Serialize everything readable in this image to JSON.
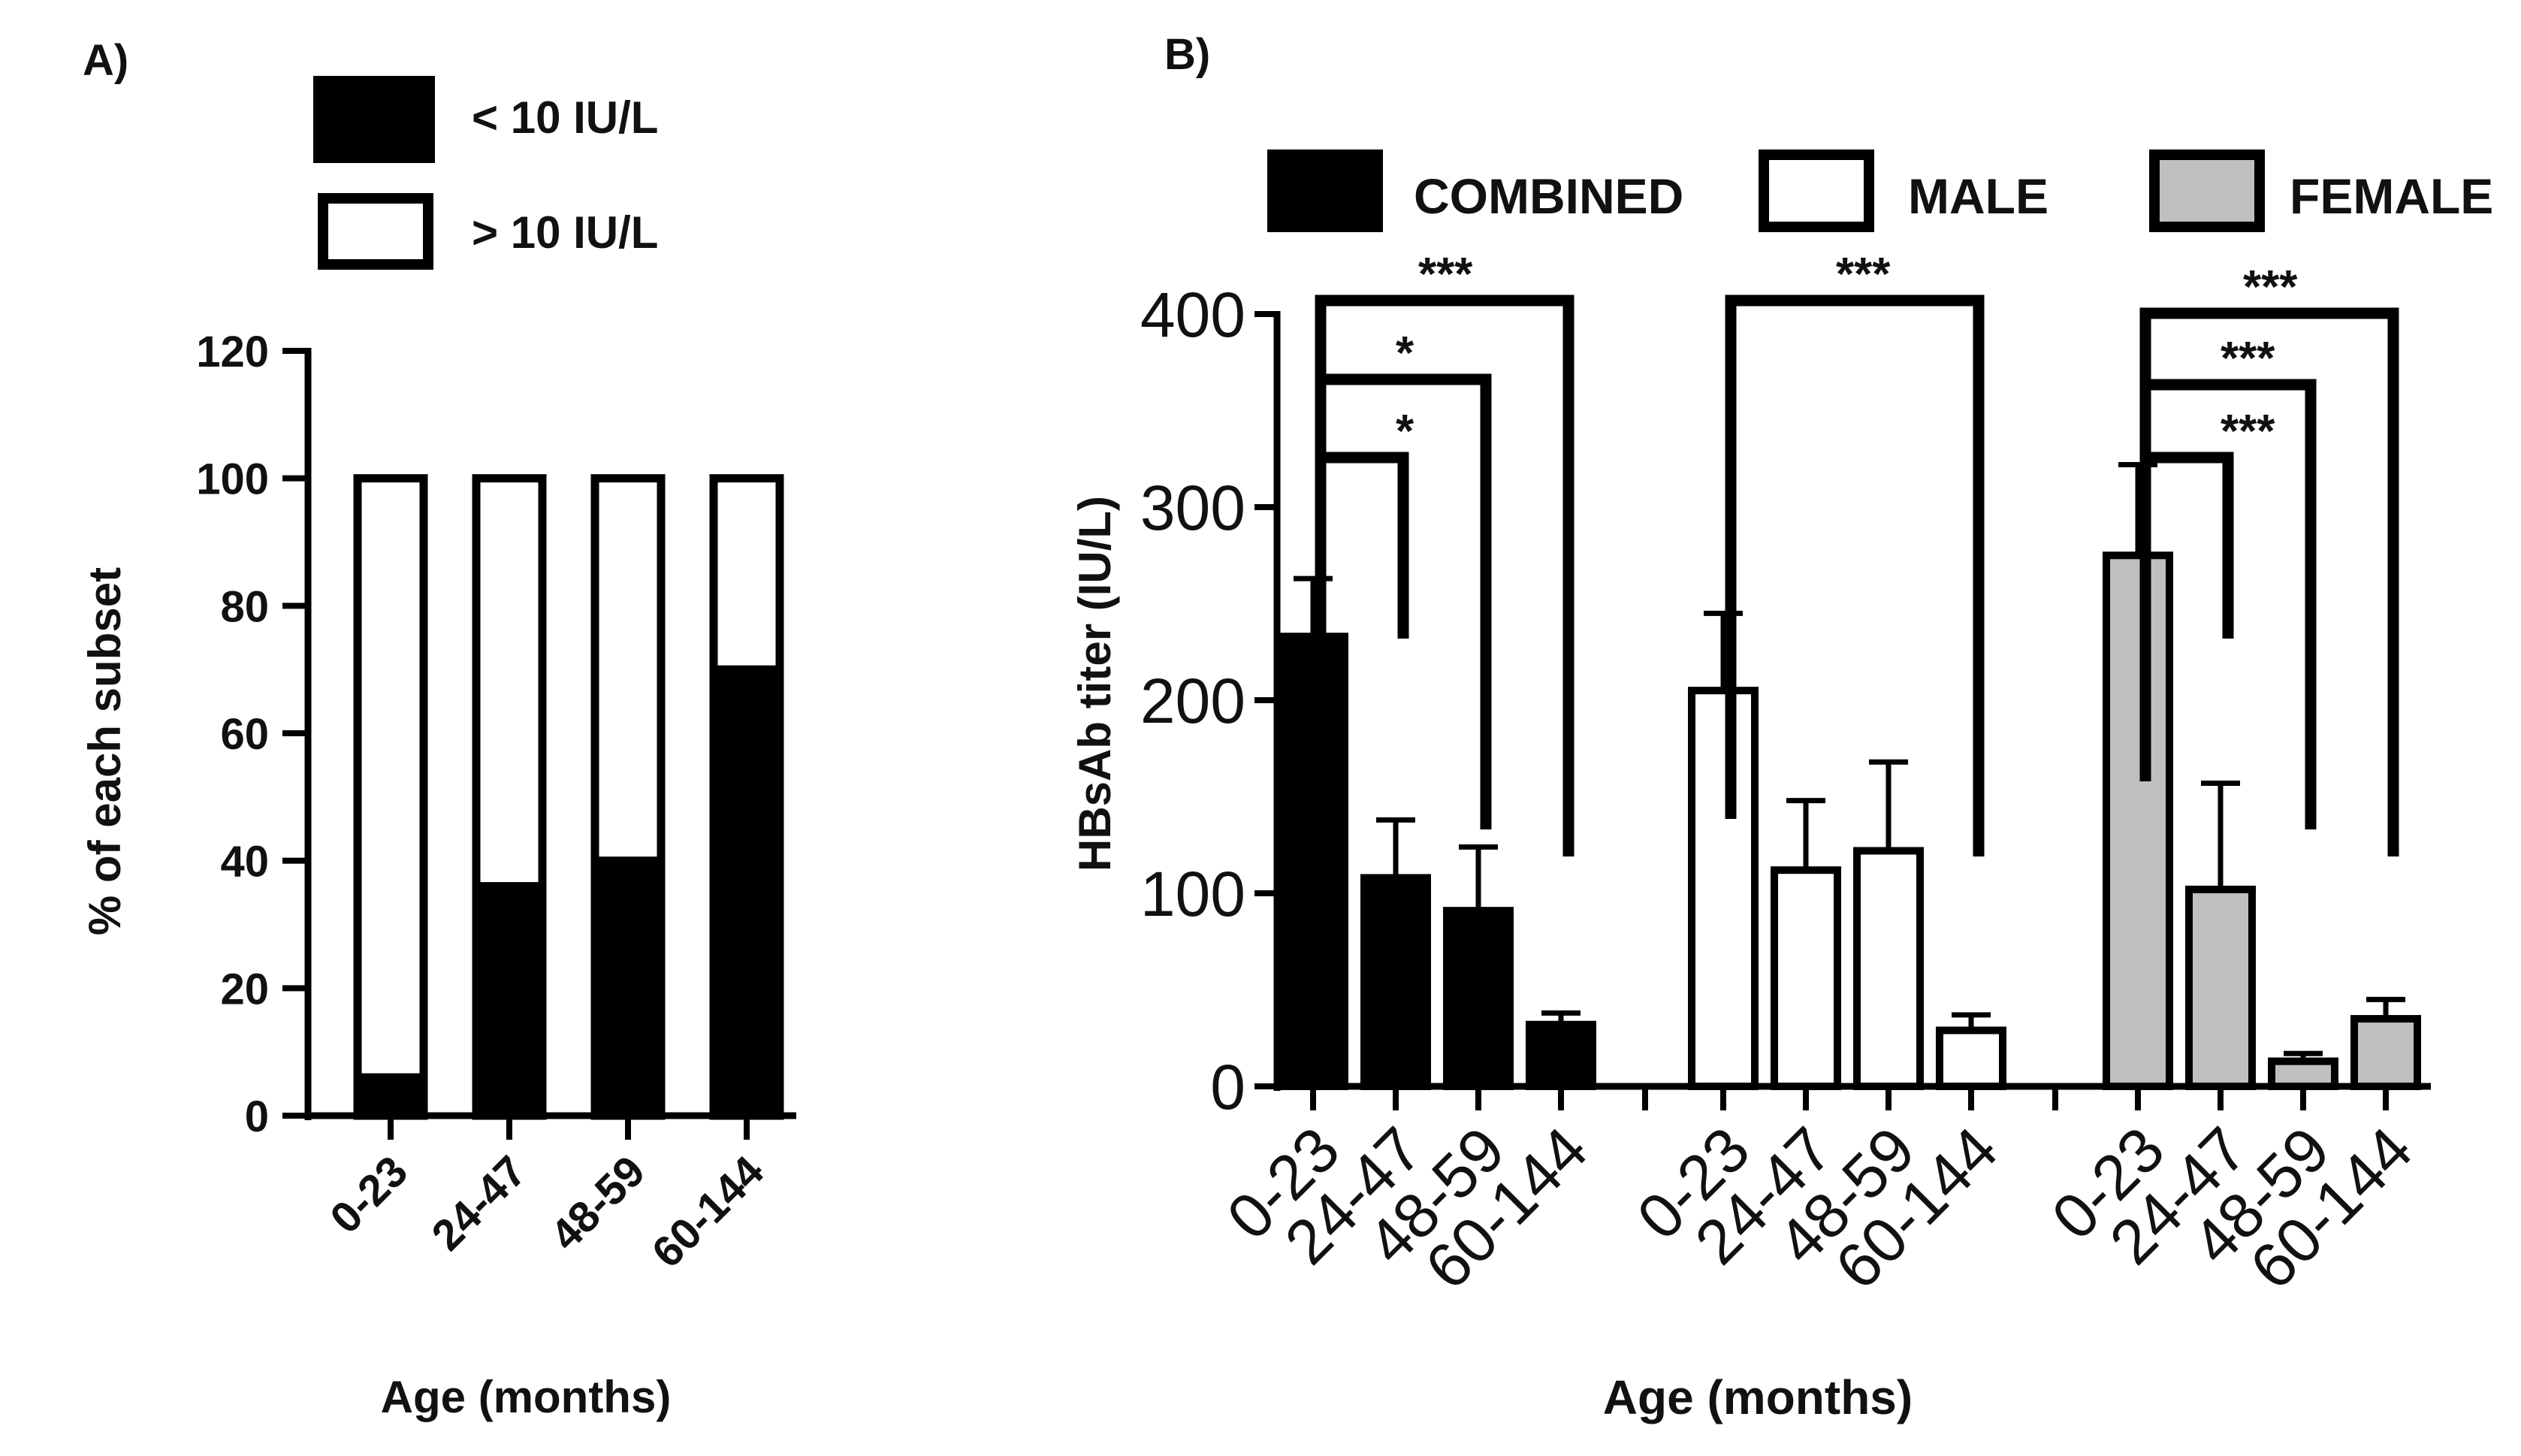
{
  "chart_data": [
    {
      "panel_label": "A)",
      "type": "bar",
      "stacked": true,
      "categories": [
        "0-23",
        "24-47",
        "48-59",
        "60-144"
      ],
      "series": [
        {
          "name": "< 10 IU/L",
          "color": "#000000",
          "values": [
            6,
            36,
            40,
            70
          ]
        },
        {
          "name": "> 10 IU/L",
          "color": "#ffffff",
          "values": [
            94,
            64,
            60,
            30
          ]
        }
      ],
      "ylabel": "% of each subset",
      "xlabel": "Age (months)",
      "ylim": [
        0,
        120
      ],
      "yticks": [
        "0",
        "20",
        "40",
        "60",
        "80",
        "100",
        "120"
      ],
      "legend": [
        {
          "label": "< 10 IU/L",
          "color": "#000000"
        },
        {
          "label": "> 10 IU/L",
          "color": "#ffffff"
        }
      ]
    },
    {
      "panel_label": "B)",
      "type": "bar",
      "ylabel": "HBsAb titer (IU/L)",
      "xlabel": "Age (months)",
      "ylim": [
        0,
        400
      ],
      "yticks": [
        "0",
        "100",
        "200",
        "300",
        "400"
      ],
      "legend": [
        {
          "label": "COMBINED",
          "color": "#000000"
        },
        {
          "label": "MALE",
          "color": "#ffffff"
        },
        {
          "label": "FEMALE",
          "color": "#bfbfbf"
        }
      ],
      "groups": [
        {
          "name": "COMBINED",
          "color": "#000000",
          "categories": [
            "0-23",
            "24-47",
            "48-59",
            "60-144"
          ],
          "values": [
            233,
            108,
            91,
            32
          ],
          "errors": [
            30,
            30,
            33,
            6
          ],
          "significance": [
            {
              "from": "0-23",
              "to": "24-47",
              "label": "*"
            },
            {
              "from": "0-23",
              "to": "48-59",
              "label": "*"
            },
            {
              "from": "0-23",
              "to": "60-144",
              "label": "***"
            }
          ]
        },
        {
          "name": "MALE",
          "color": "#ffffff",
          "categories": [
            "0-23",
            "24-47",
            "48-59",
            "60-144"
          ],
          "values": [
            205,
            112,
            122,
            29
          ],
          "errors": [
            40,
            36,
            46,
            8
          ],
          "significance": [
            {
              "from": "0-23",
              "to": "60-144",
              "label": "***"
            }
          ]
        },
        {
          "name": "FEMALE",
          "color": "#bfbfbf",
          "categories": [
            "0-23",
            "24-47",
            "48-59",
            "60-144"
          ],
          "values": [
            275,
            102,
            13,
            35
          ],
          "errors": [
            47,
            55,
            4,
            10
          ],
          "significance": [
            {
              "from": "0-23",
              "to": "24-47",
              "label": "***"
            },
            {
              "from": "0-23",
              "to": "48-59",
              "label": "***"
            },
            {
              "from": "0-23",
              "to": "60-144",
              "label": "***"
            }
          ]
        }
      ]
    }
  ]
}
